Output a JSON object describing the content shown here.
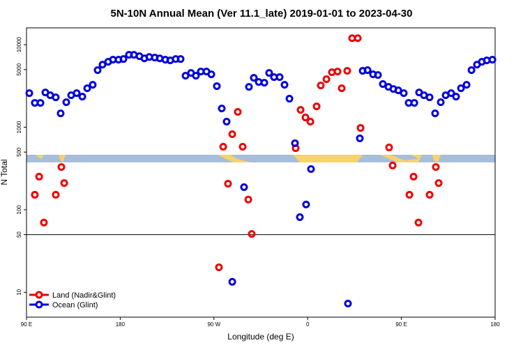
{
  "chart_data": {
    "type": "scatter",
    "title": "5N-10N Annual Mean (Ver 11.1_late)   2019-01-01 to 2023-04-30",
    "x_label": "Longitude (deg E)",
    "y_label": "N Total",
    "xlim": [
      90,
      540
    ],
    "xticks": [
      {
        "value": 90,
        "label": "90 E"
      },
      180,
      {
        "value": 270,
        "label": "90 W"
      },
      {
        "value": 360,
        "label": "0"
      },
      {
        "value": 450,
        "label": "90 E"
      },
      {
        "value": 540,
        "label": "180"
      }
    ],
    "ylim": [
      5,
      16000
    ],
    "log_y": true,
    "yticks": [
      10,
      50,
      100,
      500,
      1000,
      5000,
      10000
    ],
    "hline": 50,
    "legend": "lower left",
    "series": [
      {
        "name": "Land (Nadir&Glint)",
        "color": "#ee0000",
        "x": [
          98,
          102.1,
          106.7,
          118.1,
          123.5,
          126.2,
          274.8,
          278.9,
          283.5,
          287.6,
          292.9,
          297.6,
          303,
          306.3,
          348.5,
          353.2,
          357.9,
          362.6,
          368.6,
          372.6,
          378,
          383.3,
          388.7,
          392.7,
          398,
          402.7,
          408.1,
          410.8,
          438.2,
          441.6,
          457.7,
          461.7,
          466.4,
          477.1,
          483.1,
          485.8
        ],
        "values": [
          152,
          252,
          70,
          152,
          330,
          211,
          20.1,
          581,
          207,
          824,
          1535,
          581,
          133,
          51,
          558,
          1625,
          1313,
          1170,
          1790,
          3210,
          3820,
          4640,
          4730,
          2970,
          4830,
          12020,
          12020,
          981,
          569,
          344,
          152,
          252,
          70,
          152,
          330,
          211
        ]
      },
      {
        "name": "Ocean (Glint)",
        "color": "#0000dd",
        "x": [
          92.7,
          98,
          103.4,
          108.1,
          112.8,
          118.1,
          122.8,
          128.2,
          132.9,
          138.2,
          143.6,
          148.3,
          153.6,
          158.3,
          163,
          168.4,
          173,
          178.4,
          183.1,
          188.4,
          193.1,
          198.5,
          203.2,
          207.9,
          213.2,
          217.9,
          223.3,
          228,
          233.3,
          238,
          242.7,
          248,
          252.7,
          257.4,
          262.8,
          267.5,
          272.8,
          277.5,
          282.2,
          287.6,
          298.9,
          303.6,
          308.3,
          313,
          318.4,
          323,
          327.7,
          333.1,
          337.8,
          342.5,
          347.8,
          352.5,
          358.5,
          363.2,
          398.7,
          410.1,
          412.8,
          417.5,
          422.8,
          427.5,
          432.2,
          437.6,
          442.3,
          447,
          452.3,
          457,
          462.4,
          467,
          471.7,
          477.1,
          482.4,
          487.8,
          492.5,
          497.8,
          502.5,
          507.2,
          512.6,
          517.3,
          522.6,
          527.3,
          532,
          537.4
        ],
        "values": [
          2590,
          1975,
          1975,
          2640,
          2445,
          2305,
          1475,
          2013,
          2445,
          2590,
          2350,
          2970,
          3270,
          4920,
          5740,
          6210,
          6590,
          6590,
          6710,
          7550,
          7550,
          7260,
          6840,
          7110,
          6980,
          6840,
          6590,
          6460,
          6710,
          6710,
          4210,
          4550,
          4210,
          4730,
          4730,
          4380,
          3150,
          1690,
          1170,
          13.4,
          188,
          3085,
          3970,
          3540,
          3465,
          4550,
          4050,
          4050,
          3270,
          2220,
          640,
          81.5,
          116,
          312,
          7.3,
          733,
          4830,
          4920,
          4380,
          4300,
          3340,
          3085,
          2910,
          2800,
          2590,
          1975,
          1975,
          2640,
          2445,
          2305,
          1475,
          2013,
          2445,
          2590,
          2350,
          2970,
          3270,
          4920,
          5740,
          6210,
          6460,
          6590
        ]
      }
    ]
  }
}
